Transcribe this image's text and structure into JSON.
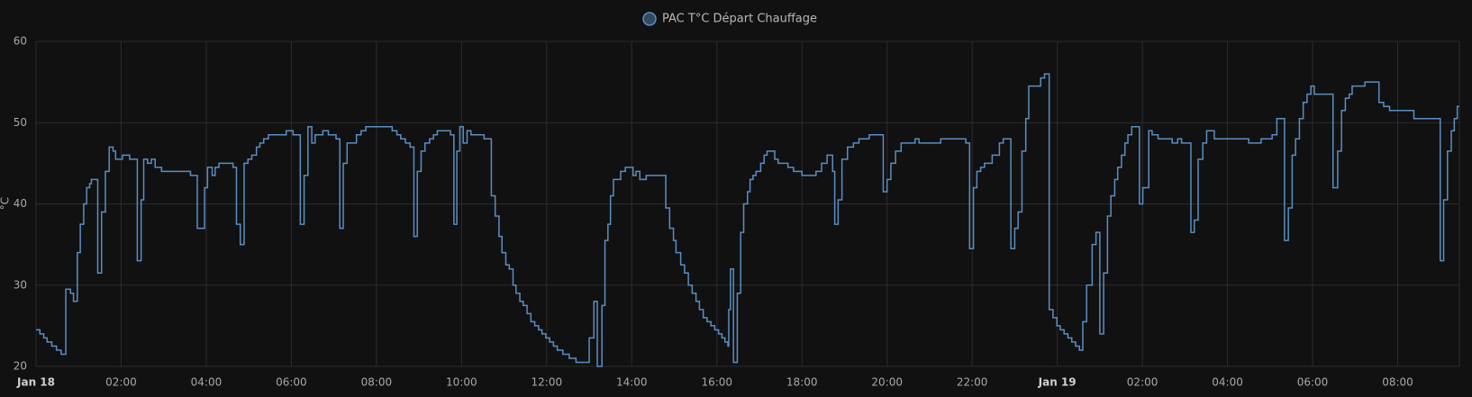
{
  "chart_data": {
    "type": "line",
    "line_shape": "step",
    "y_label": "°C",
    "series": [
      {
        "name": "PAC T°C Départ Chauffage",
        "color": "#5a8ec4",
        "values": [
          24.5,
          24,
          23.5,
          23,
          22.5,
          22,
          21.5,
          29.5,
          29,
          28,
          34,
          37.5,
          40,
          42,
          42.5,
          43,
          31.5,
          39,
          44,
          47,
          46.5,
          45.5,
          46,
          45.5,
          33,
          40.5,
          45.5,
          45,
          45.5,
          44.5,
          44,
          43.5,
          37,
          42,
          44.5,
          43.5,
          44.5,
          45,
          44.5,
          37.5,
          35,
          45,
          45.5,
          46,
          47,
          47.5,
          48,
          48.5,
          49,
          48.5,
          37.5,
          43.5,
          49.5,
          47.5,
          48.5,
          49,
          48.5,
          48,
          37,
          45,
          47.5,
          48.5,
          49,
          49.5,
          49,
          48.5,
          48,
          47.5,
          47,
          36,
          44,
          46.5,
          47.5,
          48,
          48.5,
          49,
          48.5,
          37.5,
          46.5,
          49.5,
          47.5,
          49,
          48.5,
          48,
          41,
          38.5,
          36,
          34,
          32.5,
          32,
          30,
          29,
          28,
          27.5,
          26.5,
          25.5,
          25,
          24.5,
          24,
          23.5,
          23,
          22.5,
          22,
          21.5,
          21,
          20.5,
          23.5,
          28,
          20,
          27.5,
          35.5,
          37.5,
          41,
          43,
          44,
          44.5,
          43.5,
          44,
          43,
          43.5,
          39.5,
          37,
          35.5,
          34,
          32.5,
          31.5,
          30,
          29,
          28,
          27,
          26,
          25.5,
          25,
          24.5,
          24,
          23.5,
          23,
          22.5,
          27,
          32,
          20.5,
          29,
          36.5,
          40,
          41.5,
          43,
          43.5,
          44,
          45,
          46,
          46.5,
          45.5,
          45,
          44.5,
          44,
          43.5,
          44,
          45,
          46,
          44,
          37.5,
          40.5,
          45.5,
          47,
          47.5,
          48,
          48.5,
          41.5,
          43,
          45,
          46.5,
          47.5,
          48,
          47.5,
          48,
          47.5,
          34.5,
          42,
          44,
          44.5,
          45,
          46,
          47.5,
          48,
          34.5,
          37,
          39,
          46.5,
          50.5,
          54.5,
          55.5,
          56,
          27,
          26,
          25,
          24.5,
          24,
          23.5,
          23,
          22.5,
          22,
          25.5,
          30,
          35,
          36.5,
          24,
          31.5,
          38.5,
          41,
          43,
          44.5,
          46,
          47.5,
          48.5,
          49.5,
          40,
          42,
          49,
          48.5,
          48,
          47.5,
          48,
          47.5,
          36.5,
          38,
          45.5,
          47.5,
          49,
          48,
          47.5,
          48,
          48.5,
          50.5,
          35.5,
          39.5,
          46,
          48,
          50.5,
          52.5,
          53.5,
          54.5,
          53.5,
          42,
          46.5,
          51.5,
          53,
          53.5,
          54.5,
          55,
          52.5,
          52,
          51.5,
          50.5,
          33,
          40.5,
          46.5,
          49,
          50.5,
          52
        ]
      }
    ],
    "x": [
      0,
      0.09,
      0.18,
      0.26,
      0.37,
      0.48,
      0.59,
      0.7,
      0.81,
      0.88,
      0.97,
      1.04,
      1.12,
      1.19,
      1.26,
      1.3,
      1.45,
      1.54,
      1.63,
      1.72,
      1.81,
      1.87,
      2.03,
      2.2,
      2.38,
      2.47,
      2.53,
      2.62,
      2.71,
      2.8,
      2.95,
      3.63,
      3.79,
      3.96,
      4.03,
      4.14,
      4.21,
      4.3,
      4.63,
      4.71,
      4.8,
      4.89,
      4.98,
      5.07,
      5.18,
      5.26,
      5.35,
      5.46,
      5.88,
      6.04,
      6.21,
      6.3,
      6.39,
      6.48,
      6.56,
      6.74,
      6.87,
      7.05,
      7.14,
      7.22,
      7.31,
      7.53,
      7.64,
      7.75,
      8.37,
      8.48,
      8.57,
      8.68,
      8.79,
      8.88,
      8.96,
      9.05,
      9.14,
      9.25,
      9.34,
      9.43,
      9.74,
      9.82,
      9.89,
      9.96,
      10.04,
      10.13,
      10.22,
      10.53,
      10.7,
      10.79,
      10.88,
      10.95,
      11.04,
      11.12,
      11.21,
      11.28,
      11.37,
      11.45,
      11.54,
      11.63,
      11.72,
      11.81,
      11.89,
      11.98,
      12.07,
      12.16,
      12.25,
      12.38,
      12.53,
      12.69,
      13.0,
      13.11,
      13.19,
      13.3,
      13.37,
      13.44,
      13.5,
      13.57,
      13.74,
      13.85,
      14.03,
      14.1,
      14.19,
      14.34,
      14.8,
      14.89,
      14.98,
      15.04,
      15.15,
      15.24,
      15.33,
      15.42,
      15.51,
      15.59,
      15.68,
      15.77,
      15.86,
      15.95,
      16.04,
      16.12,
      16.19,
      16.26,
      16.28,
      16.32,
      16.39,
      16.48,
      16.56,
      16.63,
      16.72,
      16.78,
      16.85,
      16.92,
      17.03,
      17.11,
      17.18,
      17.36,
      17.44,
      17.67,
      17.8,
      18.0,
      18.33,
      18.46,
      18.59,
      18.72,
      18.77,
      18.85,
      18.94,
      19.07,
      19.21,
      19.34,
      19.58,
      19.91,
      20.0,
      20.09,
      20.2,
      20.33,
      20.66,
      20.75,
      21.26,
      21.85,
      21.94,
      22.03,
      22.11,
      22.2,
      22.29,
      22.47,
      22.64,
      22.73,
      22.91,
      23.0,
      23.08,
      23.17,
      23.26,
      23.33,
      23.61,
      23.7,
      23.81,
      23.9,
      23.99,
      24.07,
      24.16,
      24.25,
      24.34,
      24.43,
      24.52,
      24.6,
      24.69,
      24.82,
      24.91,
      25.0,
      25.09,
      25.18,
      25.26,
      25.35,
      25.42,
      25.51,
      25.59,
      25.66,
      25.75,
      25.93,
      26.01,
      26.15,
      26.23,
      26.37,
      26.7,
      26.83,
      26.92,
      27.14,
      27.22,
      27.31,
      27.42,
      27.51,
      27.69,
      28.5,
      28.79,
      29.05,
      29.16,
      29.34,
      29.43,
      29.52,
      29.6,
      29.69,
      29.78,
      29.87,
      29.96,
      30.04,
      30.48,
      30.59,
      30.68,
      30.77,
      30.86,
      30.93,
      31.23,
      31.56,
      31.67,
      31.81,
      32.38,
      33.0,
      33.08,
      33.17,
      33.26,
      33.33,
      33.4
    ],
    "xlim": [
      0,
      33.45
    ],
    "xticks": [
      {
        "value": 0,
        "label": "Jan 18"
      },
      {
        "value": 2,
        "label": "02:00"
      },
      {
        "value": 4,
        "label": "04:00"
      },
      {
        "value": 6,
        "label": "06:00"
      },
      {
        "value": 8,
        "label": "08:00"
      },
      {
        "value": 10,
        "label": "10:00"
      },
      {
        "value": 12,
        "label": "12:00"
      },
      {
        "value": 14,
        "label": "14:00"
      },
      {
        "value": 16,
        "label": "16:00"
      },
      {
        "value": 18,
        "label": "18:00"
      },
      {
        "value": 20,
        "label": "20:00"
      },
      {
        "value": 22,
        "label": "22:00"
      },
      {
        "value": 24,
        "label": "Jan 19"
      },
      {
        "value": 26,
        "label": "02:00"
      },
      {
        "value": 28,
        "label": "04:00"
      },
      {
        "value": 30,
        "label": "06:00"
      },
      {
        "value": 32,
        "label": "08:00"
      }
    ],
    "ylim": [
      20,
      60
    ],
    "yticks": [
      20,
      30,
      40,
      50,
      60
    ],
    "grid": true
  }
}
